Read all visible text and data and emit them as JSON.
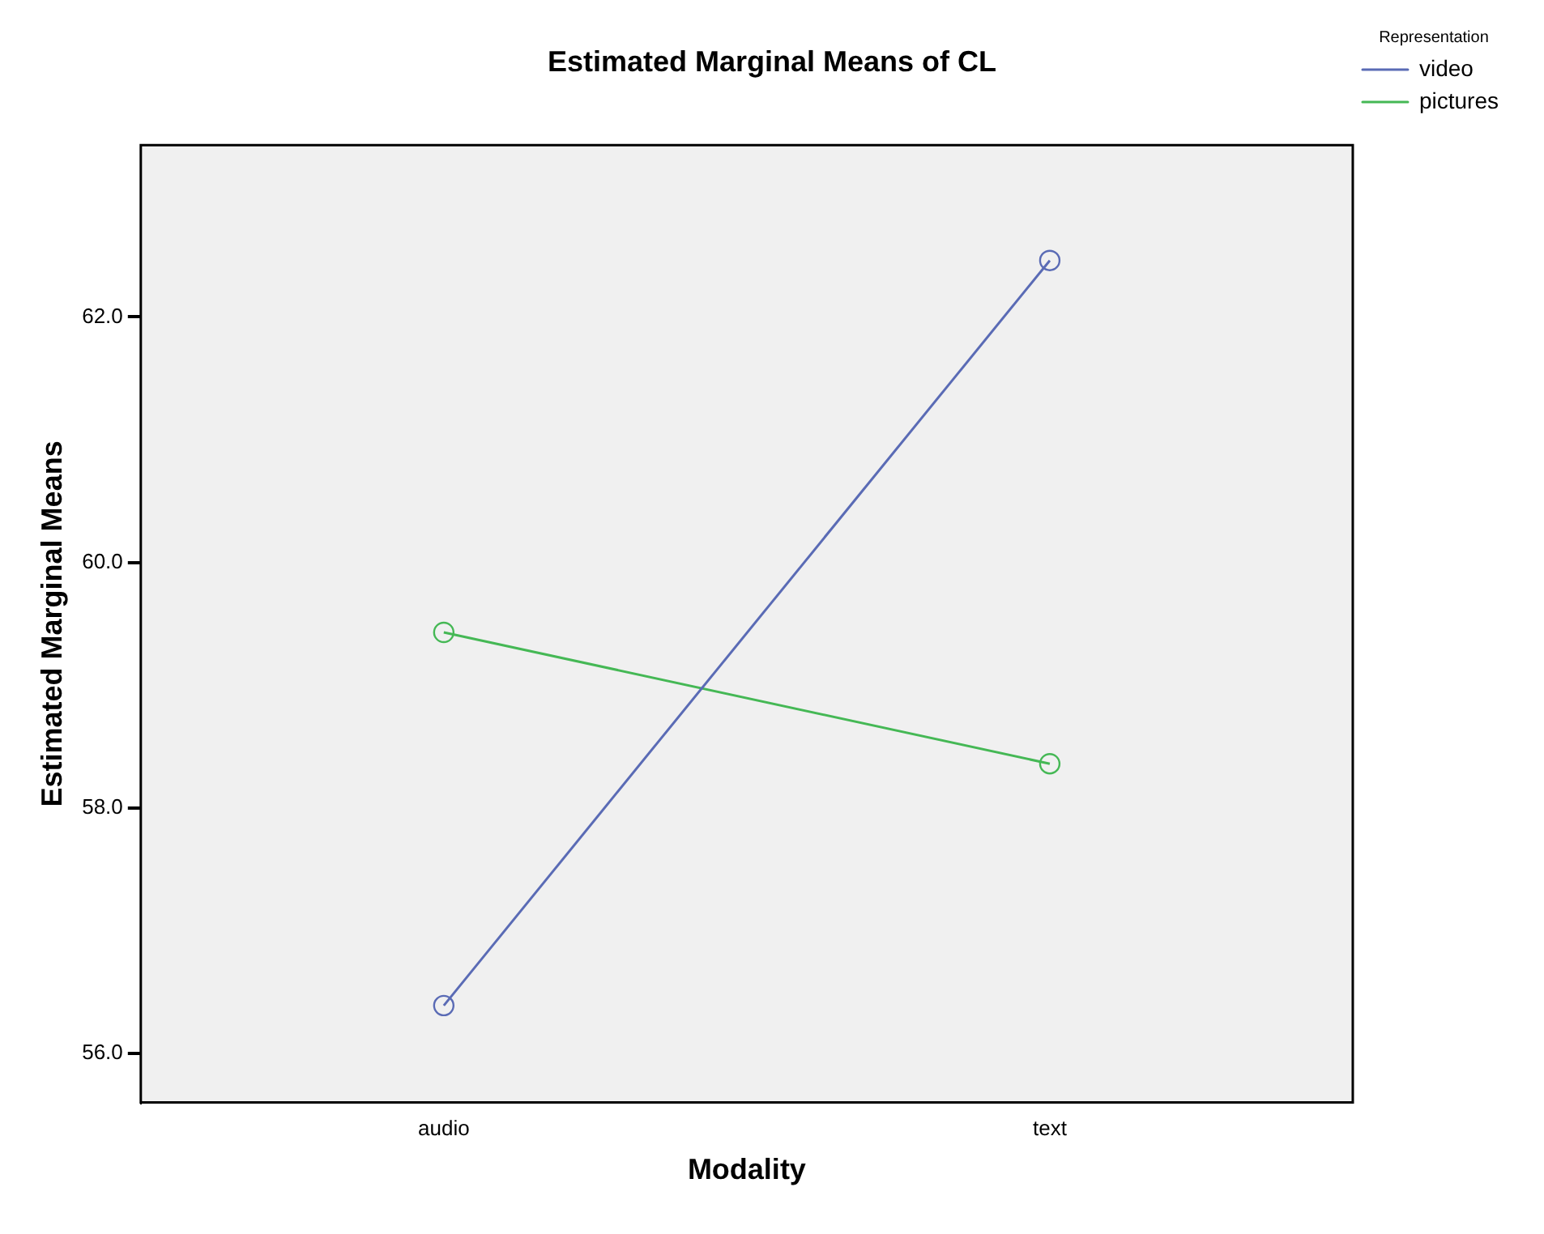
{
  "chart_data": {
    "type": "line",
    "title": "Estimated Marginal Means of CL",
    "xlabel": "Modality",
    "ylabel": "Estimated Marginal Means",
    "legend_title": "Representation",
    "legend": "right",
    "categories": [
      "audio",
      "text"
    ],
    "series": [
      {
        "name": "video",
        "color": "#5a6bb5",
        "values": [
          56.39,
          62.46
        ]
      },
      {
        "name": "pictures",
        "color": "#45b855",
        "values": [
          59.43,
          58.36
        ]
      }
    ],
    "ylim": [
      55.6,
      63.4
    ],
    "yticks": [
      {
        "value": 56,
        "label": "56.0"
      },
      {
        "value": 58,
        "label": "58.0"
      },
      {
        "value": 60,
        "label": "60.0"
      },
      {
        "value": 62,
        "label": "62.0"
      }
    ],
    "grid": false,
    "marker": "circle",
    "line_style": "solid"
  }
}
